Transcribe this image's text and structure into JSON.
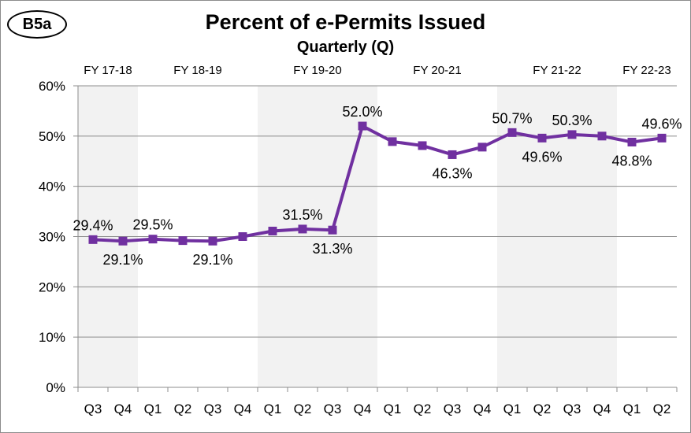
{
  "badge": "B5a",
  "chart_data": {
    "type": "line",
    "title": "Percent of e-Permits Issued",
    "subtitle": "Quarterly (Q)",
    "categories": [
      "Q3",
      "Q4",
      "Q1",
      "Q2",
      "Q3",
      "Q4",
      "Q1",
      "Q2",
      "Q3",
      "Q4",
      "Q1",
      "Q2",
      "Q3",
      "Q4",
      "Q1",
      "Q2",
      "Q3",
      "Q4",
      "Q1",
      "Q2"
    ],
    "series": [
      {
        "values": [
          29.4,
          29.1,
          29.5,
          29.2,
          29.1,
          30.0,
          31.1,
          31.5,
          31.3,
          52.0,
          48.9,
          48.1,
          46.3,
          47.8,
          50.7,
          49.6,
          50.3,
          50.0,
          48.8,
          49.6
        ]
      }
    ],
    "data_labels": [
      {
        "index": 0,
        "text": "29.4%",
        "pos": "above"
      },
      {
        "index": 1,
        "text": "29.1%",
        "pos": "below"
      },
      {
        "index": 2,
        "text": "29.5%",
        "pos": "above"
      },
      {
        "index": 4,
        "text": "29.1%",
        "pos": "below"
      },
      {
        "index": 7,
        "text": "31.5%",
        "pos": "above"
      },
      {
        "index": 8,
        "text": "31.3%",
        "pos": "below"
      },
      {
        "index": 9,
        "text": "52.0%",
        "pos": "above"
      },
      {
        "index": 12,
        "text": "46.3%",
        "pos": "below"
      },
      {
        "index": 14,
        "text": "50.7%",
        "pos": "above"
      },
      {
        "index": 15,
        "text": "49.6%",
        "pos": "below"
      },
      {
        "index": 16,
        "text": "50.3%",
        "pos": "above"
      },
      {
        "index": 18,
        "text": "48.8%",
        "pos": "below"
      },
      {
        "index": 19,
        "text": "49.6%",
        "pos": "above"
      }
    ],
    "fiscal_years": [
      {
        "label": "FY 17-18",
        "start": 0,
        "end": 1,
        "shaded": true
      },
      {
        "label": "FY 18-19",
        "start": 2,
        "end": 5,
        "shaded": false
      },
      {
        "label": "FY 19-20",
        "start": 6,
        "end": 9,
        "shaded": true
      },
      {
        "label": "FY 20-21",
        "start": 10,
        "end": 13,
        "shaded": false
      },
      {
        "label": "FY 21-22",
        "start": 14,
        "end": 17,
        "shaded": true
      },
      {
        "label": "FY 22-23",
        "start": 18,
        "end": 19,
        "shaded": false
      }
    ],
    "ylim": [
      0,
      60
    ],
    "yticks": [
      0,
      10,
      20,
      30,
      40,
      50,
      60
    ],
    "ytick_labels": [
      "0%",
      "10%",
      "20%",
      "30%",
      "40%",
      "50%",
      "60%"
    ],
    "grid": true,
    "legend": "none",
    "colors": {
      "line": "#7030a0",
      "shade": "#f2f2f2",
      "grid": "#8c8c8c"
    }
  }
}
